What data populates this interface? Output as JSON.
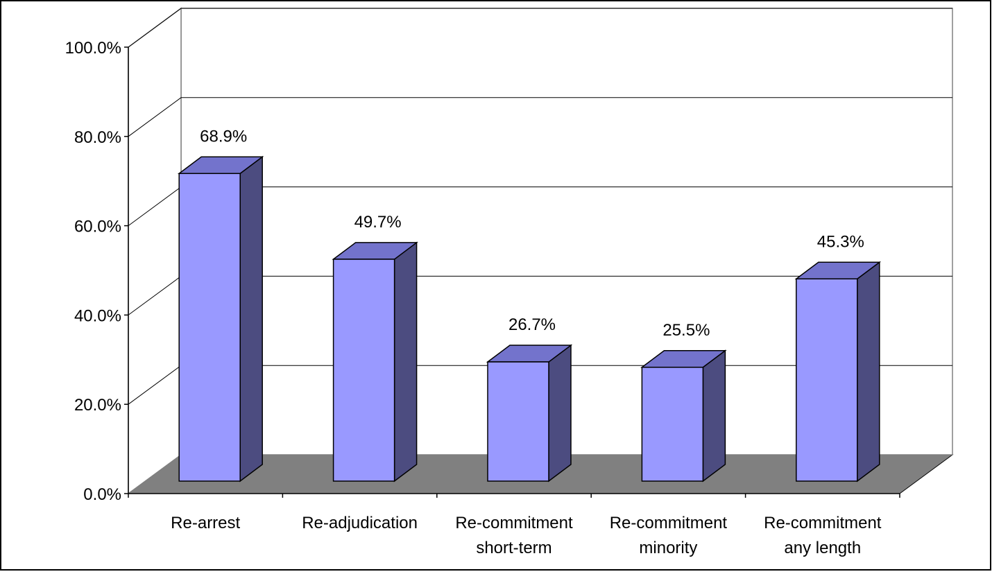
{
  "chart_data": {
    "type": "bar",
    "categories": [
      [
        "Re-arrest"
      ],
      [
        "Re-adjudication"
      ],
      [
        "Re-commitment",
        "short-term"
      ],
      [
        "Re-commitment",
        "minority"
      ],
      [
        "Re-commitment",
        "any length"
      ]
    ],
    "values": [
      68.9,
      49.7,
      26.7,
      25.5,
      45.3
    ],
    "data_labels": [
      "68.9%",
      "49.7%",
      "26.7%",
      "25.5%",
      "45.3%"
    ],
    "y_ticks": [
      "0.0%",
      "20.0%",
      "40.0%",
      "60.0%",
      "80.0%",
      "100.0%"
    ],
    "ylim": [
      0,
      100
    ],
    "grid": true,
    "style": "3d-column",
    "colors": {
      "bar_front": "#9999ff",
      "bar_top": "#7373cc",
      "bar_side": "#4c4c80",
      "floor": "#808080",
      "gridline": "#000000"
    }
  }
}
